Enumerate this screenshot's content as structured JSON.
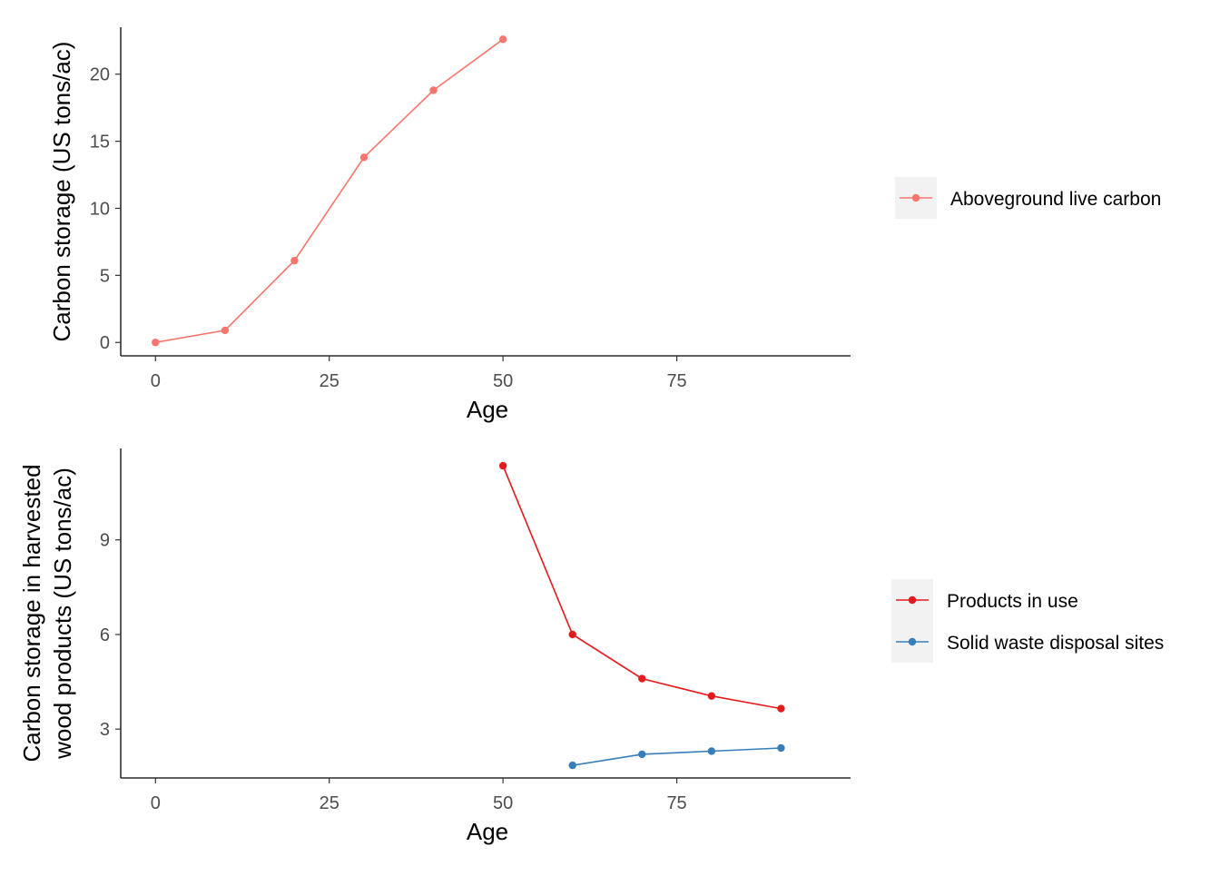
{
  "chart_data": [
    {
      "type": "line",
      "xlabel": "Age",
      "ylabel": "Carbon storage (US tons/ac)",
      "xlim": [
        -5,
        100
      ],
      "ylim": [
        -1,
        23.5
      ],
      "x_ticks": [
        0,
        25,
        50,
        75
      ],
      "y_ticks": [
        0,
        5,
        10,
        15,
        20
      ],
      "grid": false,
      "legend_position": "right",
      "series": [
        {
          "name": "Aboveground live carbon",
          "color": "#F8766D",
          "x": [
            0,
            10,
            20,
            30,
            40,
            50
          ],
          "y": [
            0,
            0.9,
            6.1,
            13.8,
            18.8,
            22.6
          ]
        }
      ]
    },
    {
      "type": "line",
      "xlabel": "Age",
      "ylabel": "Carbon storage in harvested wood products (US tons/ac)",
      "ylabel_lines": [
        "Carbon storage in harvested",
        "wood products (US tons/ac)"
      ],
      "xlim": [
        -5,
        100
      ],
      "ylim": [
        1.45,
        11.9
      ],
      "x_ticks": [
        0,
        25,
        50,
        75
      ],
      "y_ticks": [
        3,
        6,
        9
      ],
      "grid": false,
      "legend_position": "right",
      "series": [
        {
          "name": "Products in use",
          "color": "#E41A1C",
          "x": [
            50,
            60,
            70,
            80,
            90
          ],
          "y": [
            11.35,
            6.0,
            4.6,
            4.05,
            3.65
          ]
        },
        {
          "name": "Solid waste disposal sites",
          "color": "#377EB8",
          "x": [
            60,
            70,
            80,
            90
          ],
          "y": [
            1.85,
            2.2,
            2.3,
            2.4
          ]
        }
      ]
    }
  ]
}
